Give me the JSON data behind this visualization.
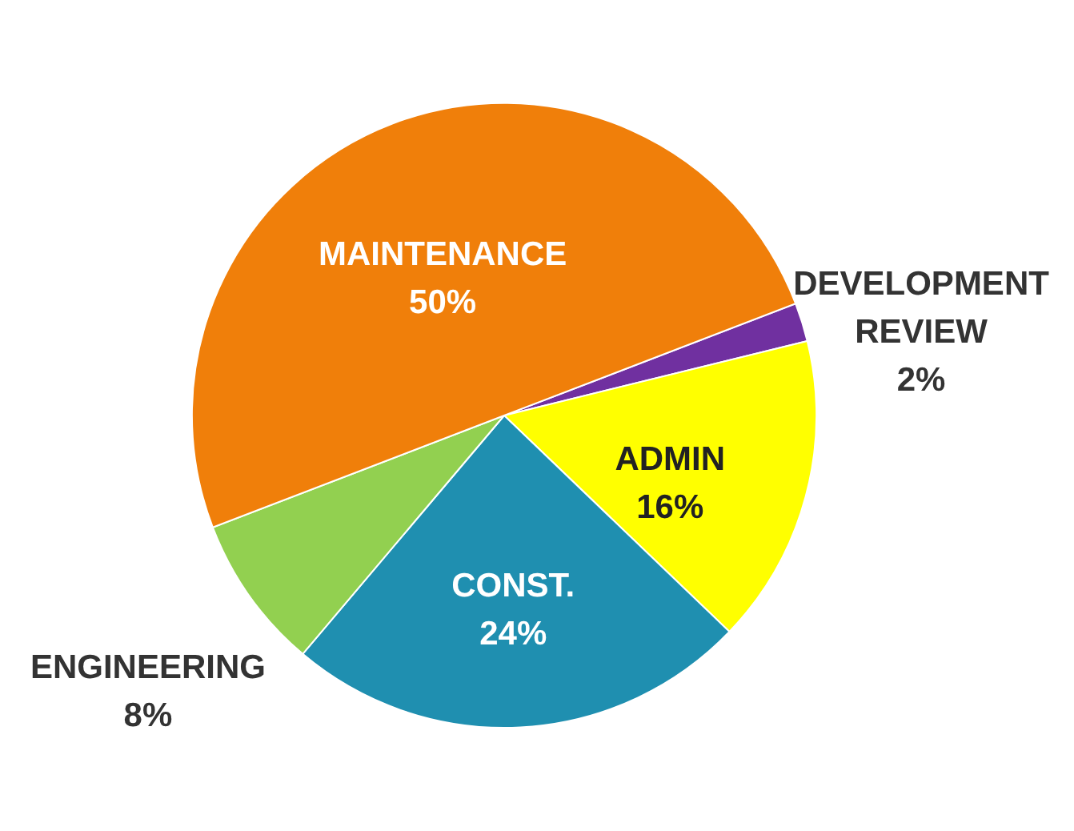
{
  "chart_data": {
    "type": "pie",
    "categories": [
      "DEVELOPMENT REVIEW",
      "ADMIN",
      "CONST.",
      "ENGINEERING",
      "MAINTENANCE"
    ],
    "values": [
      2,
      16,
      24,
      8,
      50
    ],
    "value_labels": [
      "2%",
      "16%",
      "24%",
      "8%",
      "50%"
    ],
    "colors": [
      "#7030a0",
      "#ffff00",
      "#1f8fb0",
      "#92d050",
      "#f07f0a"
    ]
  }
}
